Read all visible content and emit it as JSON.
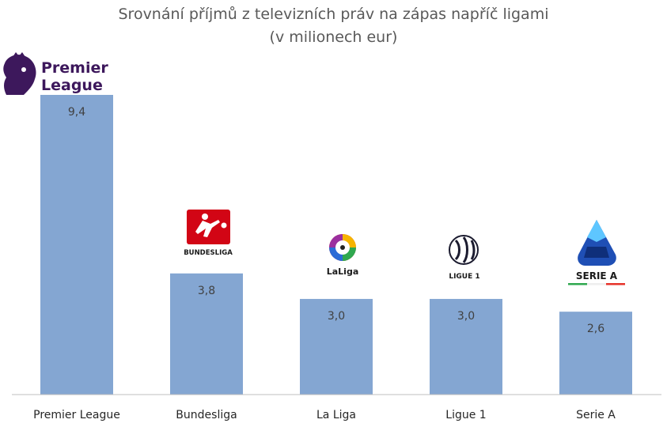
{
  "title_line1": "Srovnání příjmů z televizních práv na zápas napříč ligami",
  "title_line2": "(v milionech eur)",
  "colors": {
    "bar": "#84a6d2",
    "axis": "#bfbfbf"
  },
  "logos": {
    "premier_league": {
      "line1": "Premier",
      "line2": "League"
    },
    "bundesliga": "BUNDESLIGA",
    "laliga": "LaLiga",
    "ligue1": "LIGUE 1",
    "seriea": "SERIE A"
  },
  "chart_data": {
    "type": "bar",
    "categories": [
      "Premier League",
      "Bundesliga",
      "La Liga",
      "Ligue 1",
      "Serie A"
    ],
    "values": [
      9.4,
      3.8,
      3.0,
      3.0,
      2.6
    ],
    "value_labels": [
      "9,4",
      "3,8",
      "3,0",
      "3,0",
      "2,6"
    ],
    "title": "Srovnání příjmů z televizních práv na zápas napříč ligami (v milionech eur)",
    "xlabel": "",
    "ylabel": "",
    "ylim": [
      0,
      9.4
    ],
    "grid": false,
    "legend": "none"
  }
}
